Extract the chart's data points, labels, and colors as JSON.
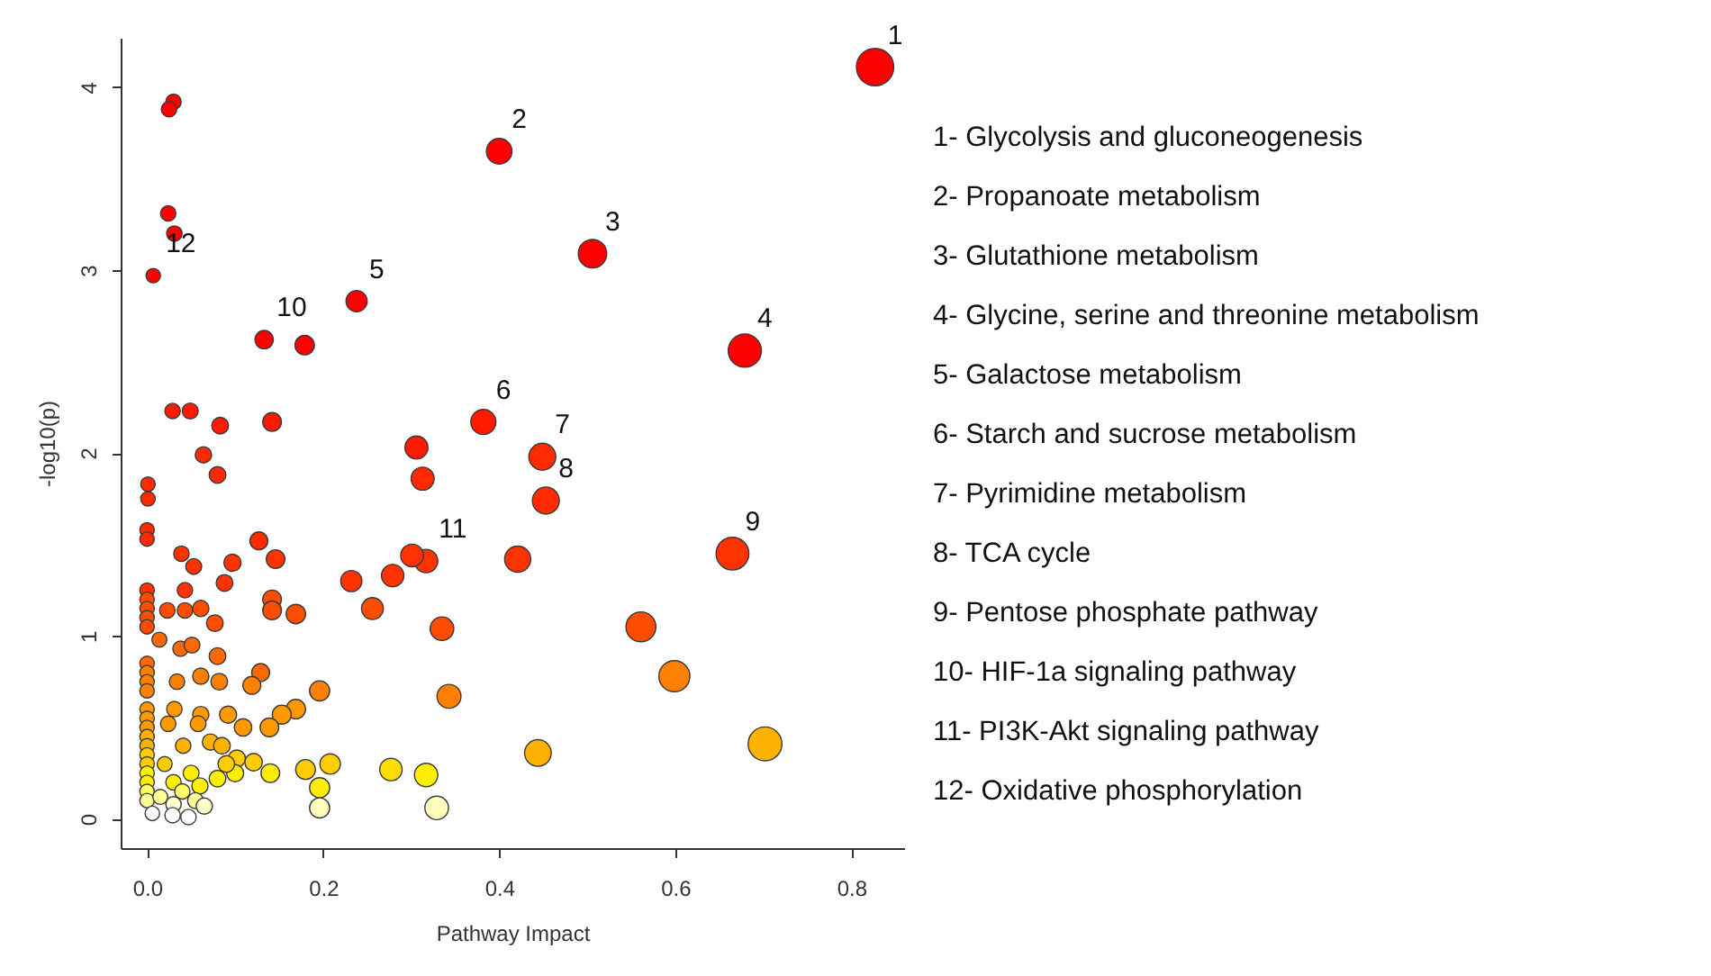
{
  "chart_data": {
    "type": "bubble",
    "xlabel": "Pathway Impact",
    "ylabel": "-log10(p)",
    "marker": "circle",
    "xlim": [
      -0.03,
      0.86
    ],
    "ylim": [
      -0.16,
      4.27
    ],
    "xticks": [
      {
        "value": 0,
        "label": "0.0"
      },
      {
        "value": 0.2,
        "label": "0.2"
      },
      {
        "value": 0.4,
        "label": "0.4"
      },
      {
        "value": 0.6,
        "label": "0.6"
      },
      {
        "value": 0.8,
        "label": "0.8"
      }
    ],
    "yticks": [
      0,
      1,
      2,
      3,
      4
    ],
    "x": [
      0.827,
      0.4,
      0.506,
      0.679,
      0.238,
      0.382,
      0.449,
      0.453,
      0.665,
      0.133,
      0.317,
      0.007,
      0.03,
      0.025,
      0.024,
      0.031,
      0.179,
      0.029,
      0.049,
      0.083,
      0.142,
      0.064,
      0.08,
      0.306,
      0.313,
      0.001,
      0.001,
      0,
      0,
      0.039,
      0.053,
      0.097,
      0.127,
      0.146,
      0.088,
      0.232,
      0.256,
      0.279,
      0.301,
      0.421,
      0.335,
      0.561,
      0.599,
      0.343,
      0.444,
      0.702,
      0.196,
      0.142,
      0.142,
      0.169,
      0.043,
      0.023,
      0.043,
      0.061,
      0.077,
      0.014,
      0.038,
      0.051,
      0.08,
      0.034,
      0.061,
      0.082,
      0.129,
      0.119,
      0.169,
      0.153,
      0.139,
      0.109,
      0.092,
      0.061,
      0.031,
      0.024,
      0.058,
      0.072,
      0.041,
      0.085,
      0.102,
      0.121,
      0.14,
      0.18,
      0.208,
      0.196,
      0.196,
      0.277,
      0.317,
      0.329,
      0,
      0,
      0,
      0,
      0,
      0,
      0,
      0,
      0,
      0,
      0,
      0,
      0,
      0,
      0,
      0,
      0,
      0,
      0,
      0,
      0.02,
      0.03,
      0.05,
      0.04,
      0.06,
      0.08,
      0.1,
      0.015,
      0.055,
      0.03,
      0.09,
      0.006,
      0.029,
      0.047,
      0.065
    ],
    "values": [
      4.11,
      3.65,
      3.09,
      2.56,
      2.83,
      2.17,
      1.98,
      1.74,
      1.45,
      2.62,
      1.41,
      2.97,
      3.92,
      3.88,
      3.31,
      3.2,
      2.59,
      2.23,
      2.23,
      2.15,
      2.17,
      1.99,
      1.88,
      2.03,
      1.86,
      1.83,
      1.75,
      1.58,
      1.53,
      1.45,
      1.38,
      1.4,
      1.52,
      1.42,
      1.29,
      1.3,
      1.15,
      1.33,
      1.44,
      1.42,
      1.04,
      1.05,
      0.78,
      0.67,
      0.36,
      0.41,
      0.7,
      1.2,
      1.14,
      1.12,
      1.25,
      1.14,
      1.14,
      1.15,
      1.07,
      0.98,
      0.93,
      0.95,
      0.89,
      0.75,
      0.78,
      0.75,
      0.8,
      0.73,
      0.6,
      0.57,
      0.5,
      0.5,
      0.57,
      0.57,
      0.6,
      0.52,
      0.52,
      0.42,
      0.4,
      0.4,
      0.33,
      0.31,
      0.25,
      0.27,
      0.3,
      0.17,
      0.06,
      0.27,
      0.24,
      0.06,
      1.25,
      1.2,
      1.15,
      1.1,
      1.05,
      0.85,
      0.8,
      0.75,
      0.7,
      0.6,
      0.55,
      0.5,
      0.45,
      0.4,
      0.35,
      0.3,
      0.25,
      0.2,
      0.15,
      0.1,
      0.3,
      0.2,
      0.25,
      0.15,
      0.18,
      0.22,
      0.25,
      0.12,
      0.1,
      0.08,
      0.3,
      0.03,
      0.02,
      0.01,
      0.07
    ],
    "sizes": [
      1,
      0.47,
      0.58,
      0.79,
      0.32,
      0.45,
      0.52,
      0.52,
      0.77,
      0.24,
      0.39,
      0.15,
      0.17,
      0.17,
      0.17,
      0.17,
      0.27,
      0.17,
      0.18,
      0.2,
      0.25,
      0.19,
      0.2,
      0.38,
      0.38,
      0.15,
      0.15,
      0.15,
      0.15,
      0.17,
      0.18,
      0.21,
      0.23,
      0.25,
      0.2,
      0.32,
      0.34,
      0.36,
      0.37,
      0.49,
      0.4,
      0.64,
      0.69,
      0.41,
      0.51,
      0.82,
      0.29,
      0.25,
      0.25,
      0.27,
      0.17,
      0.17,
      0.17,
      0.19,
      0.2,
      0.16,
      0.17,
      0.18,
      0.2,
      0.17,
      0.19,
      0.2,
      0.23,
      0.23,
      0.27,
      0.26,
      0.25,
      0.22,
      0.21,
      0.19,
      0.17,
      0.17,
      0.18,
      0.19,
      0.17,
      0.2,
      0.21,
      0.22,
      0.25,
      0.28,
      0.3,
      0.29,
      0.29,
      0.36,
      0.39,
      0.4,
      0.15,
      0.15,
      0.15,
      0.15,
      0.15,
      0.15,
      0.15,
      0.15,
      0.15,
      0.15,
      0.15,
      0.15,
      0.15,
      0.15,
      0.15,
      0.15,
      0.15,
      0.15,
      0.15,
      0.15,
      0.16,
      0.17,
      0.18,
      0.17,
      0.19,
      0.2,
      0.21,
      0.16,
      0.18,
      0.17,
      0.2,
      0.15,
      0.17,
      0.17,
      0.19
    ],
    "colors": [
      "#ff0000",
      "#ff0000",
      "#ff0000",
      "#ff0000",
      "#ff0000",
      "#ff1a00",
      "#ff2a00",
      "#ff2a00",
      "#ff3300",
      "#ff0000",
      "#ff3300",
      "#ff0000",
      "#ff0000",
      "#ff0000",
      "#ff0000",
      "#ff0000",
      "#ff0000",
      "#ff1a00",
      "#ff1a00",
      "#ff1a00",
      "#ff1a00",
      "#ff2a00",
      "#ff2a00",
      "#ff1a00",
      "#ff2a00",
      "#ff2a00",
      "#ff2a00",
      "#ff2a00",
      "#ff2a00",
      "#ff3300",
      "#ff3300",
      "#ff3300",
      "#ff2a00",
      "#ff3300",
      "#ff3300",
      "#ff3300",
      "#ff4d00",
      "#ff3300",
      "#ff3300",
      "#ff3300",
      "#ff4d00",
      "#ff4d00",
      "#ff8000",
      "#ff8000",
      "#ffb300",
      "#ffb300",
      "#ff8000",
      "#ff4d00",
      "#ff4d00",
      "#ff4d00",
      "#ff3300",
      "#ff4d00",
      "#ff4d00",
      "#ff4d00",
      "#ff4d00",
      "#ff6a00",
      "#ff6a00",
      "#ff6a00",
      "#ff6a00",
      "#ff8000",
      "#ff8000",
      "#ff8000",
      "#ff6a00",
      "#ff8000",
      "#ff9900",
      "#ff9900",
      "#ff9900",
      "#ff9900",
      "#ff9900",
      "#ff9900",
      "#ff9900",
      "#ff9900",
      "#ff9900",
      "#ffb300",
      "#ffb300",
      "#ffb300",
      "#ffcc00",
      "#ffcc00",
      "#ffee00",
      "#ffcc00",
      "#ffcc00",
      "#ffee00",
      "#ffffbb",
      "#ffdd00",
      "#ffee00",
      "#ffffbb",
      "#ff3300",
      "#ff4d00",
      "#ff4d00",
      "#ff4d00",
      "#ff4d00",
      "#ff6a00",
      "#ff8000",
      "#ff8000",
      "#ff8000",
      "#ff9900",
      "#ff9900",
      "#ff9900",
      "#ffb300",
      "#ffb300",
      "#ffcc00",
      "#ffcc00",
      "#ffee00",
      "#ffee00",
      "#ffff66",
      "#ffff99",
      "#ffcc00",
      "#ffee00",
      "#ffee00",
      "#ffff66",
      "#ffee00",
      "#ffee00",
      "#ffee00",
      "#ffff99",
      "#ffff99",
      "#ffffcc",
      "#ffcc00",
      "#ffffff",
      "#ffffff",
      "#ffffff",
      "#ffffcc"
    ],
    "annotations": [
      {
        "text": "1",
        "x": 0.827,
        "y": 4.11
      },
      {
        "text": "2",
        "x": 0.4,
        "y": 3.65
      },
      {
        "text": "3",
        "x": 0.506,
        "y": 3.09
      },
      {
        "text": "4",
        "x": 0.679,
        "y": 2.56
      },
      {
        "text": "5",
        "x": 0.238,
        "y": 2.83
      },
      {
        "text": "6",
        "x": 0.382,
        "y": 2.17
      },
      {
        "text": "7",
        "x": 0.449,
        "y": 1.98
      },
      {
        "text": "8",
        "x": 0.453,
        "y": 1.74
      },
      {
        "text": "9",
        "x": 0.665,
        "y": 1.45
      },
      {
        "text": "10",
        "x": 0.133,
        "y": 2.62
      },
      {
        "text": "11",
        "x": 0.317,
        "y": 1.41
      },
      {
        "text": "12",
        "x": 0.007,
        "y": 2.97
      },
      "1- Glycolysis and gluconeogenesis",
      "2- Propanoate metabolism",
      "3- Glutathione metabolism",
      "4- Glycine, serine and threonine metabolism",
      "5- Galactose metabolism",
      "6- Starch and sucrose metabolism",
      "7- Pyrimidine metabolism",
      "8- TCA cycle",
      "9- Pentose phosphate pathway",
      "10- HIF-1a signaling pathway",
      "11- PI3K-Akt signaling pathway",
      "12- Oxidative phosphorylation"
    ]
  }
}
